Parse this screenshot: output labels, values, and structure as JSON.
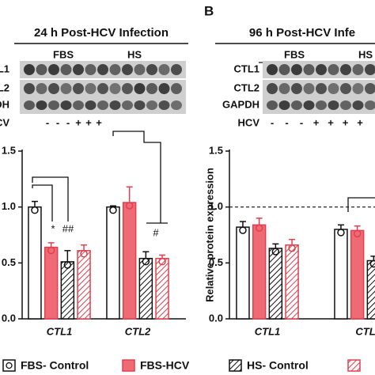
{
  "chart_data": [
    {
      "type": "bar",
      "title": "24 h Post-HCV Infection",
      "blot": {
        "row_labels": [
          "L1",
          "L2",
          "DH"
        ],
        "groups": [
          "FBS",
          "HS"
        ],
        "hcv_label": "CV",
        "hcv_signs": [
          "-",
          "-",
          "-",
          "+",
          "+",
          "+"
        ]
      },
      "categories": [
        "CTL1",
        "CTL2"
      ],
      "series": [
        {
          "color": "#111111",
          "fill": "#ffffff",
          "hatch": false,
          "values": [
            1.0,
            1.0
          ],
          "errors": [
            0.05,
            0.01
          ]
        },
        {
          "color": "#e0404e",
          "fill": "#ee6b75",
          "hatch": false,
          "values": [
            0.64,
            1.04
          ],
          "errors": [
            0.04,
            0.14
          ]
        },
        {
          "color": "#111111",
          "fill": "#ffffff",
          "hatch": true,
          "values": [
            0.51,
            0.54
          ],
          "errors": [
            0.1,
            0.06
          ]
        },
        {
          "color": "#e0404e",
          "fill": "#ffffff",
          "hatch": true,
          "values": [
            0.61,
            0.54
          ],
          "errors": [
            0.05,
            0.03
          ]
        }
      ],
      "annotations": [
        "*",
        "##",
        "#"
      ],
      "ylim": [
        0,
        1.5
      ],
      "yticks": [
        {
          "value": 0,
          "label": "0.0"
        },
        {
          "value": 0.5,
          "label": "0.5"
        },
        {
          "value": 1,
          "label": "1.0"
        },
        {
          "value": 1.5,
          "label": "1.5"
        }
      ]
    },
    {
      "type": "bar",
      "panel_label": "B",
      "title": "96 h Post-HCV Infe",
      "blot": {
        "row_labels": [
          "CTL1",
          "CTL2",
          "GAPDH"
        ],
        "groups": [
          "FBS",
          "HS"
        ],
        "hcv_label": "HCV",
        "hcv_signs": [
          "-",
          "-",
          "-",
          "+",
          "+",
          "+",
          "+"
        ]
      },
      "y_label": "Relative protein expression",
      "categories": [
        "CTL1",
        "CTL"
      ],
      "series": [
        {
          "color": "#111111",
          "fill": "#ffffff",
          "hatch": false,
          "values": [
            0.82,
            0.8
          ],
          "errors": [
            0.05,
            0.04
          ]
        },
        {
          "color": "#e0404e",
          "fill": "#ee6b75",
          "hatch": false,
          "values": [
            0.84,
            0.79
          ],
          "errors": [
            0.06,
            0.04
          ]
        },
        {
          "color": "#111111",
          "fill": "#ffffff",
          "hatch": true,
          "values": [
            0.63,
            0.52
          ],
          "errors": [
            0.04,
            0.04
          ]
        },
        {
          "color": "#e0404e",
          "fill": "#ffffff",
          "hatch": true,
          "values": [
            0.66,
            null
          ],
          "errors": [
            0.05,
            null
          ]
        }
      ],
      "reference_line": 1.0,
      "ylim": [
        0,
        1.5
      ],
      "yticks": [
        {
          "value": 0,
          "label": "0.0"
        },
        {
          "value": 0.5,
          "label": "0.5"
        },
        {
          "value": 1,
          "label": "1.0"
        },
        {
          "value": 1.5,
          "label": "1.5"
        }
      ]
    }
  ],
  "legend": {
    "entries": [
      "FBS- Control",
      "FBS-HCV",
      "HS- Control"
    ]
  }
}
